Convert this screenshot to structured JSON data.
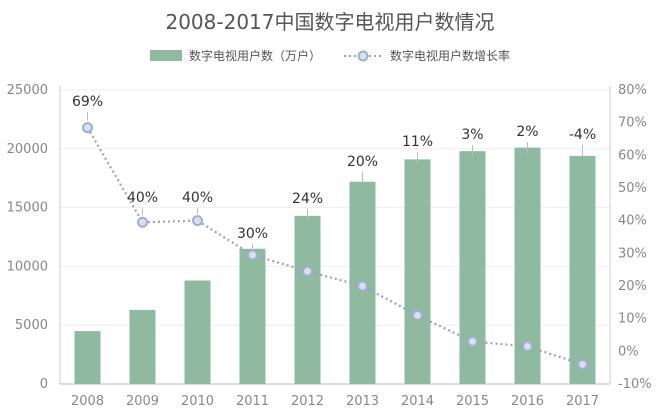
{
  "chart_data": {
    "type": "bar",
    "title": "2008-2017中国数字电视用户数情况",
    "categories": [
      "2008",
      "2009",
      "2010",
      "2011",
      "2012",
      "2013",
      "2014",
      "2015",
      "2016",
      "2017"
    ],
    "series": [
      {
        "name": "数字电视用户数（万户）",
        "type": "bar",
        "axis": "left",
        "values": [
          4500,
          6300,
          8800,
          11500,
          14300,
          17200,
          19100,
          19800,
          20100,
          19400
        ]
      },
      {
        "name": "数字电视用户数增长率",
        "type": "line",
        "axis": "right",
        "values": [
          68.5,
          39.5,
          40.0,
          29.5,
          24.5,
          20.0,
          11.0,
          3.0,
          1.5,
          -4.0
        ],
        "data_labels": [
          "69%",
          "40%",
          "40%",
          "30%",
          "24%",
          "20%",
          "11%",
          "3%",
          "2%",
          "-4%"
        ]
      }
    ],
    "ylim_left": [
      0,
      25000
    ],
    "yticks_left": [
      "0",
      "5000",
      "10000",
      "15000",
      "20000",
      "25000"
    ],
    "ylim_right": [
      -10,
      80
    ],
    "yticks_right": [
      "-10%",
      "0%",
      "10%",
      "20%",
      "30%",
      "40%",
      "50%",
      "60%",
      "70%",
      "80%"
    ],
    "grid": true,
    "legend_position": "top",
    "colors": {
      "bar": "#8fbaa0",
      "line": "#9aa4b8",
      "marker_fill": "#d9dff0",
      "marker_stroke": "#9fb0cf",
      "text": "#555555",
      "axis": "#888888",
      "grid": "#eeeeee"
    }
  }
}
